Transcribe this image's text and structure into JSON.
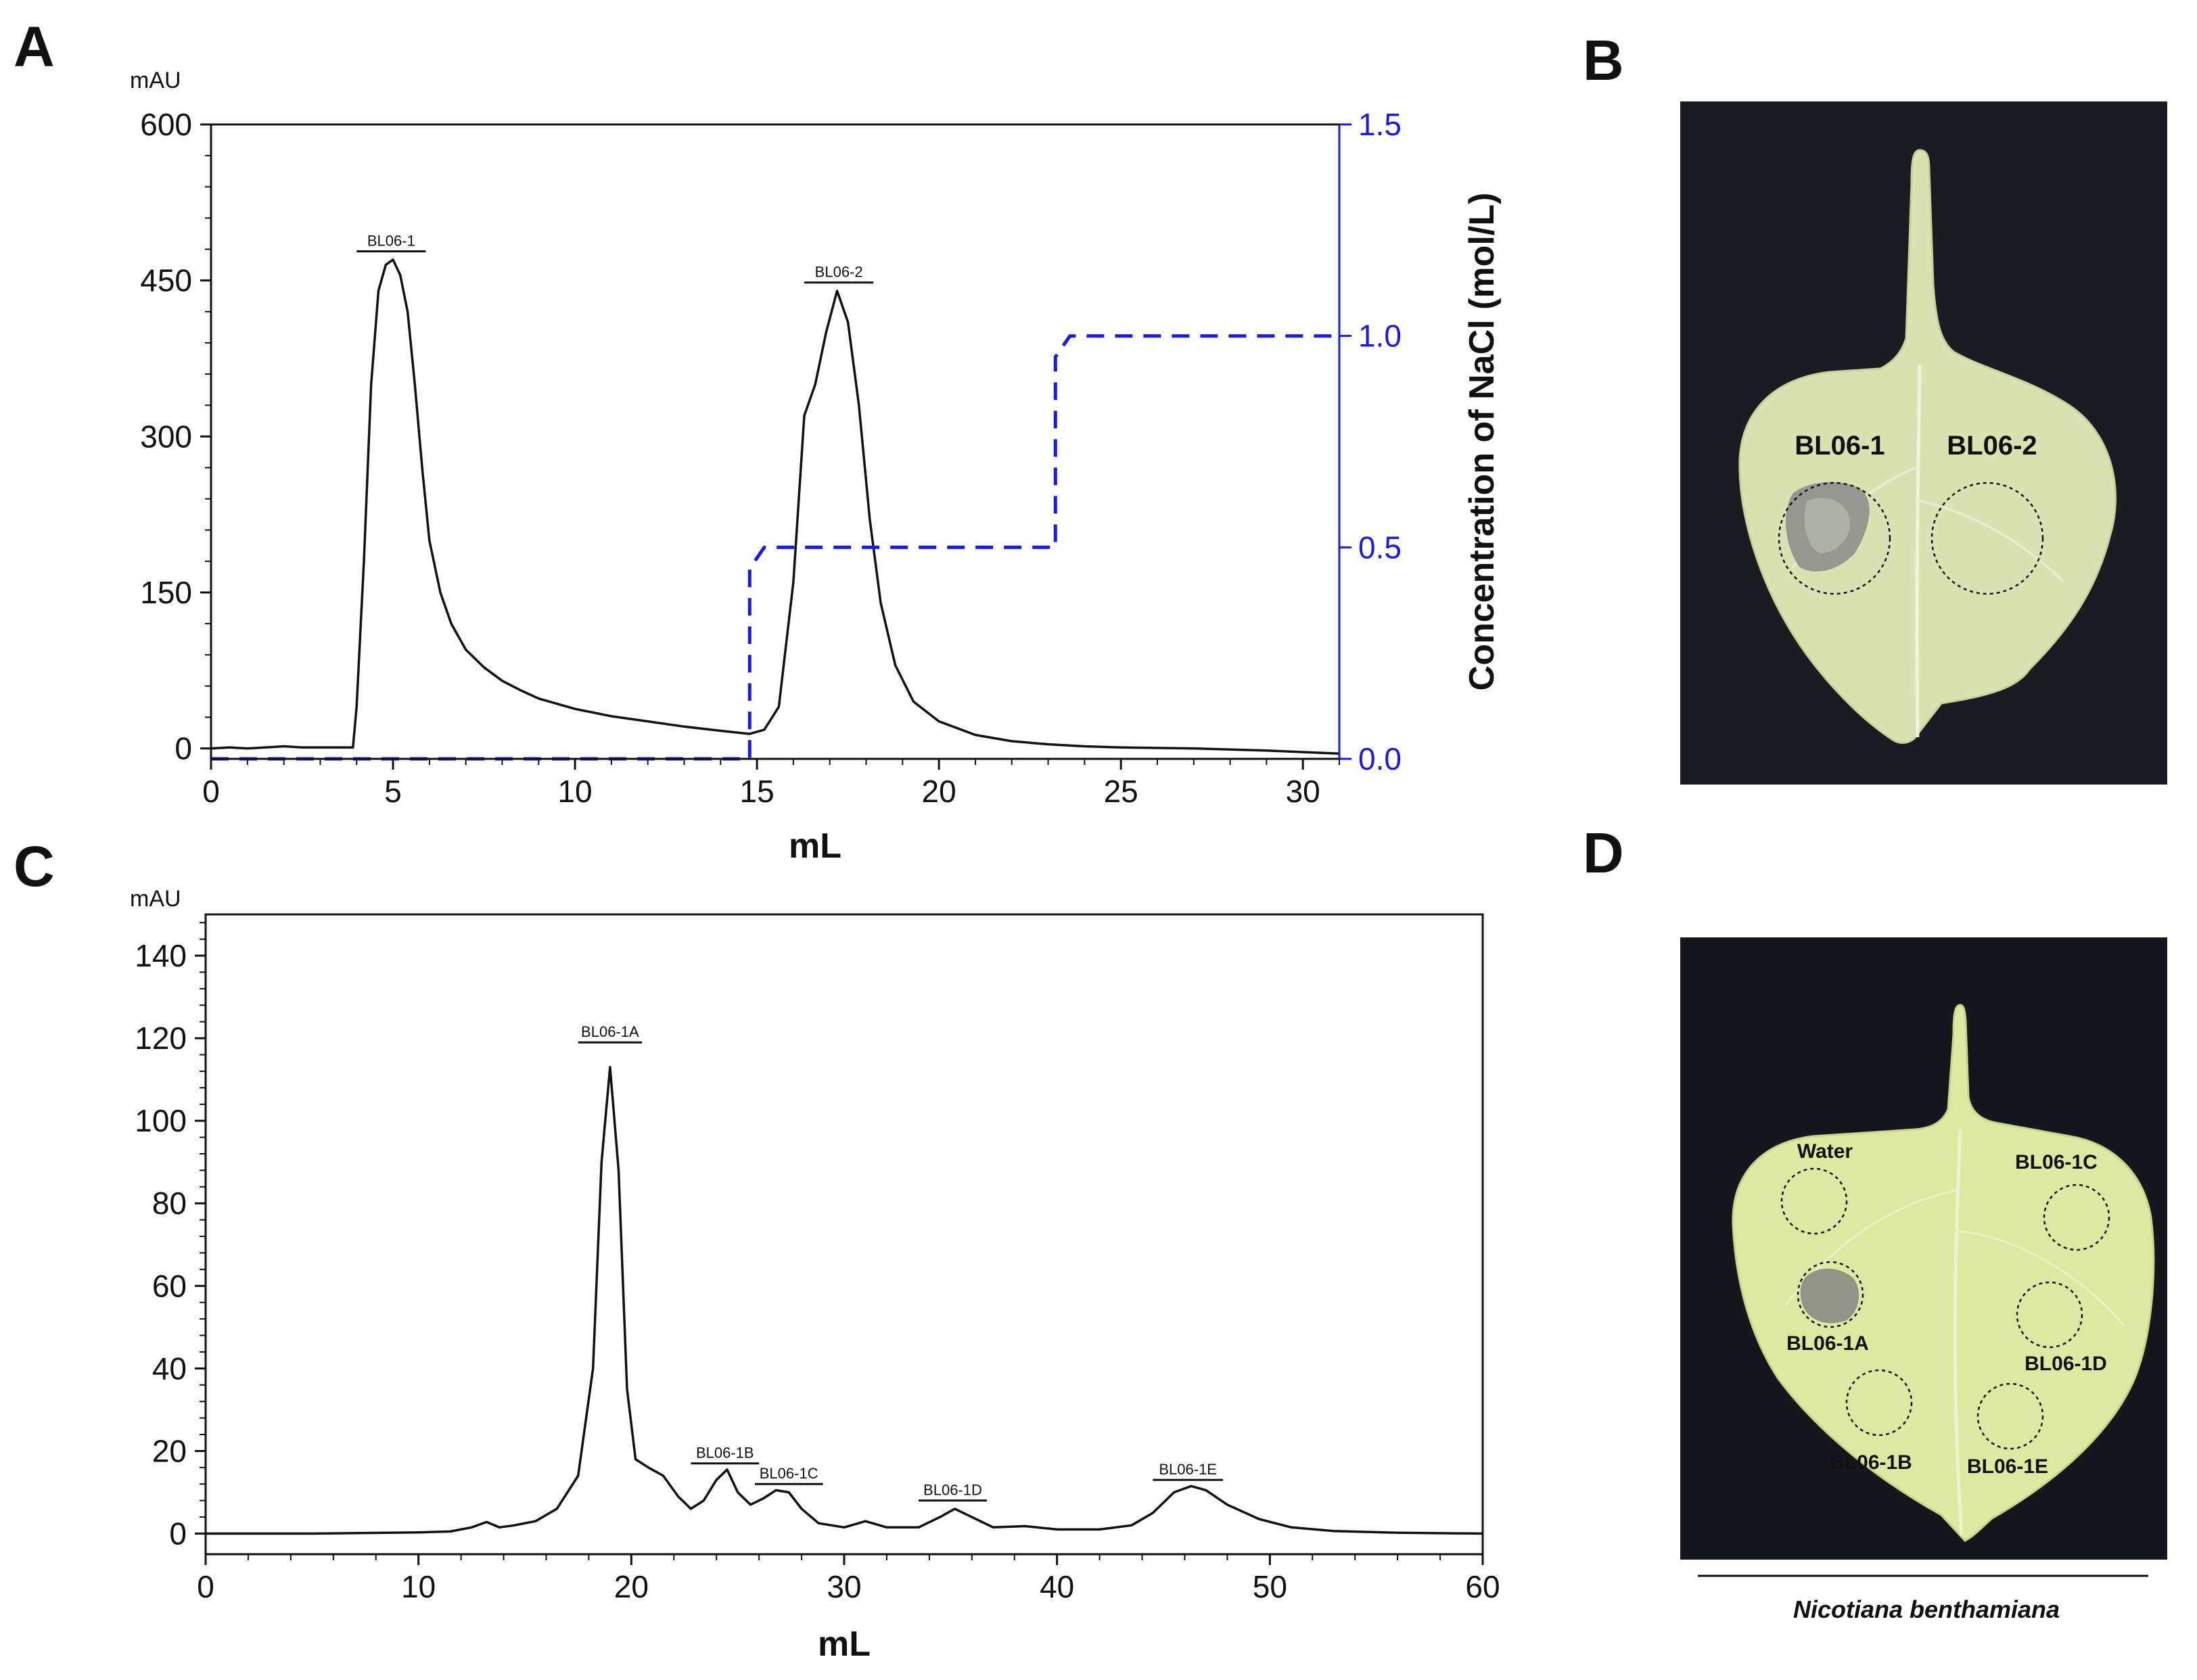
{
  "panels": {
    "a": "A",
    "b": "B",
    "c": "C",
    "d": "D"
  },
  "colors": {
    "trace": "#111111",
    "nacl": "#1a1ae6",
    "leafB": "#d9e2b0",
    "leafD": "#dde8a0",
    "background_photo": "#16171c"
  },
  "chart_data": [
    {
      "id": "A",
      "type": "line",
      "xlabel": "mL",
      "ylabel_unit": "mAU",
      "y2label": "Concentration of NaCl (mol/L)",
      "xlim": [
        0,
        31
      ],
      "ylim": [
        -10,
        600
      ],
      "y2lim": [
        0,
        1.5
      ],
      "x_ticks": [
        "0",
        "5",
        "10",
        "15",
        "20",
        "25",
        "30"
      ],
      "y_ticks": [
        "0",
        "150",
        "300",
        "450",
        "600"
      ],
      "y2_ticks": [
        "0.0",
        "0.5",
        "1.0",
        "1.5"
      ],
      "peak_labels": [
        {
          "text": "BL06-1",
          "x_start": 4.0,
          "x_end": 5.9,
          "y": 478
        },
        {
          "text": "BL06-2",
          "x_start": 16.3,
          "x_end": 18.2,
          "y": 448
        }
      ],
      "series": [
        {
          "name": "UV absorbance",
          "axis": "left",
          "x": [
            0,
            0.5,
            1,
            1.5,
            2,
            2.5,
            3,
            3.5,
            3.9,
            4.0,
            4.2,
            4.4,
            4.6,
            4.8,
            5.0,
            5.2,
            5.4,
            5.6,
            5.8,
            6.0,
            6.3,
            6.6,
            7.0,
            7.5,
            8,
            8.5,
            9,
            10,
            11,
            12,
            13,
            14,
            14.8,
            15.2,
            15.6,
            16.0,
            16.3,
            16.6,
            16.9,
            17.2,
            17.5,
            17.8,
            18.1,
            18.4,
            18.8,
            19.3,
            20,
            21,
            22,
            23,
            24,
            25,
            27,
            29,
            31
          ],
          "values": [
            0,
            1,
            0,
            1,
            2,
            1,
            1,
            1,
            1,
            40,
            180,
            350,
            440,
            465,
            470,
            455,
            420,
            350,
            270,
            200,
            150,
            120,
            95,
            78,
            65,
            56,
            48,
            38,
            31,
            26,
            21,
            17,
            14,
            18,
            40,
            160,
            320,
            350,
            400,
            440,
            410,
            330,
            220,
            140,
            80,
            45,
            26,
            13,
            7,
            4,
            2,
            1,
            0,
            -2,
            -5
          ]
        },
        {
          "name": "NaCl concentration",
          "axis": "right",
          "style": "dashed",
          "x": [
            0,
            14.8,
            14.8,
            15.2,
            23.2,
            23.2,
            23.6,
            31
          ],
          "values": [
            0,
            0,
            0.45,
            0.5,
            0.5,
            0.95,
            1.0,
            1.0
          ]
        }
      ]
    },
    {
      "id": "C",
      "type": "line",
      "xlabel": "mL",
      "ylabel_unit": "mAU",
      "xlim": [
        0,
        60
      ],
      "ylim": [
        -5,
        150
      ],
      "x_ticks": [
        "0",
        "10",
        "20",
        "30",
        "40",
        "50",
        "60"
      ],
      "y_ticks": [
        "0",
        "20",
        "40",
        "60",
        "80",
        "100",
        "120",
        "140"
      ],
      "peak_labels": [
        {
          "text": "BL06-1A",
          "x_start": 17.5,
          "x_end": 20.5,
          "y": 119
        },
        {
          "text": "BL06-1B",
          "x_start": 22.8,
          "x_end": 26.0,
          "y": 17
        },
        {
          "text": "BL06-1C",
          "x_start": 25.8,
          "x_end": 29.0,
          "y": 12
        },
        {
          "text": "BL06-1D",
          "x_start": 33.5,
          "x_end": 36.7,
          "y": 8
        },
        {
          "text": "BL06-1E",
          "x_start": 44.5,
          "x_end": 47.8,
          "y": 13
        }
      ],
      "series": [
        {
          "name": "UV absorbance",
          "axis": "left",
          "x": [
            0,
            5,
            10,
            11.5,
            12.5,
            13.2,
            13.8,
            14.5,
            15.5,
            16.5,
            17.5,
            18.2,
            18.6,
            19.0,
            19.4,
            19.8,
            20.2,
            20.8,
            21.5,
            22.2,
            22.8,
            23.4,
            24.0,
            24.5,
            25.0,
            25.6,
            26.2,
            26.8,
            27.4,
            28.0,
            28.8,
            30.0,
            31.0,
            32.0,
            33.5,
            34.5,
            35.2,
            36.0,
            37.0,
            38.5,
            40.0,
            42.0,
            43.5,
            44.5,
            45.5,
            46.3,
            47.0,
            48.0,
            49.5,
            51.0,
            53.0,
            56.0,
            60.0
          ],
          "values": [
            0,
            0,
            0.3,
            0.5,
            1.5,
            2.8,
            1.5,
            2.0,
            3.0,
            6.0,
            14.0,
            40.0,
            90.0,
            113.0,
            88.0,
            35.0,
            18.0,
            16.0,
            14.0,
            9.0,
            6.0,
            8.0,
            13.0,
            15.5,
            10.0,
            7.0,
            8.5,
            10.5,
            10.0,
            6.0,
            2.5,
            1.5,
            3.0,
            1.5,
            1.5,
            4.0,
            6.0,
            4.0,
            1.5,
            1.8,
            1.0,
            1.0,
            2.0,
            5.0,
            10.0,
            11.5,
            10.5,
            7.0,
            3.5,
            1.5,
            0.6,
            0.2,
            0
          ]
        }
      ]
    }
  ],
  "photoB": {
    "spots": [
      "BL06-1",
      "BL06-2"
    ]
  },
  "photoD": {
    "spots": [
      "Water",
      "BL06-1C",
      "BL06-1A",
      "BL06-1D",
      "BL06-1B",
      "BL06-1E"
    ],
    "species": "Nicotiana benthamiana"
  }
}
